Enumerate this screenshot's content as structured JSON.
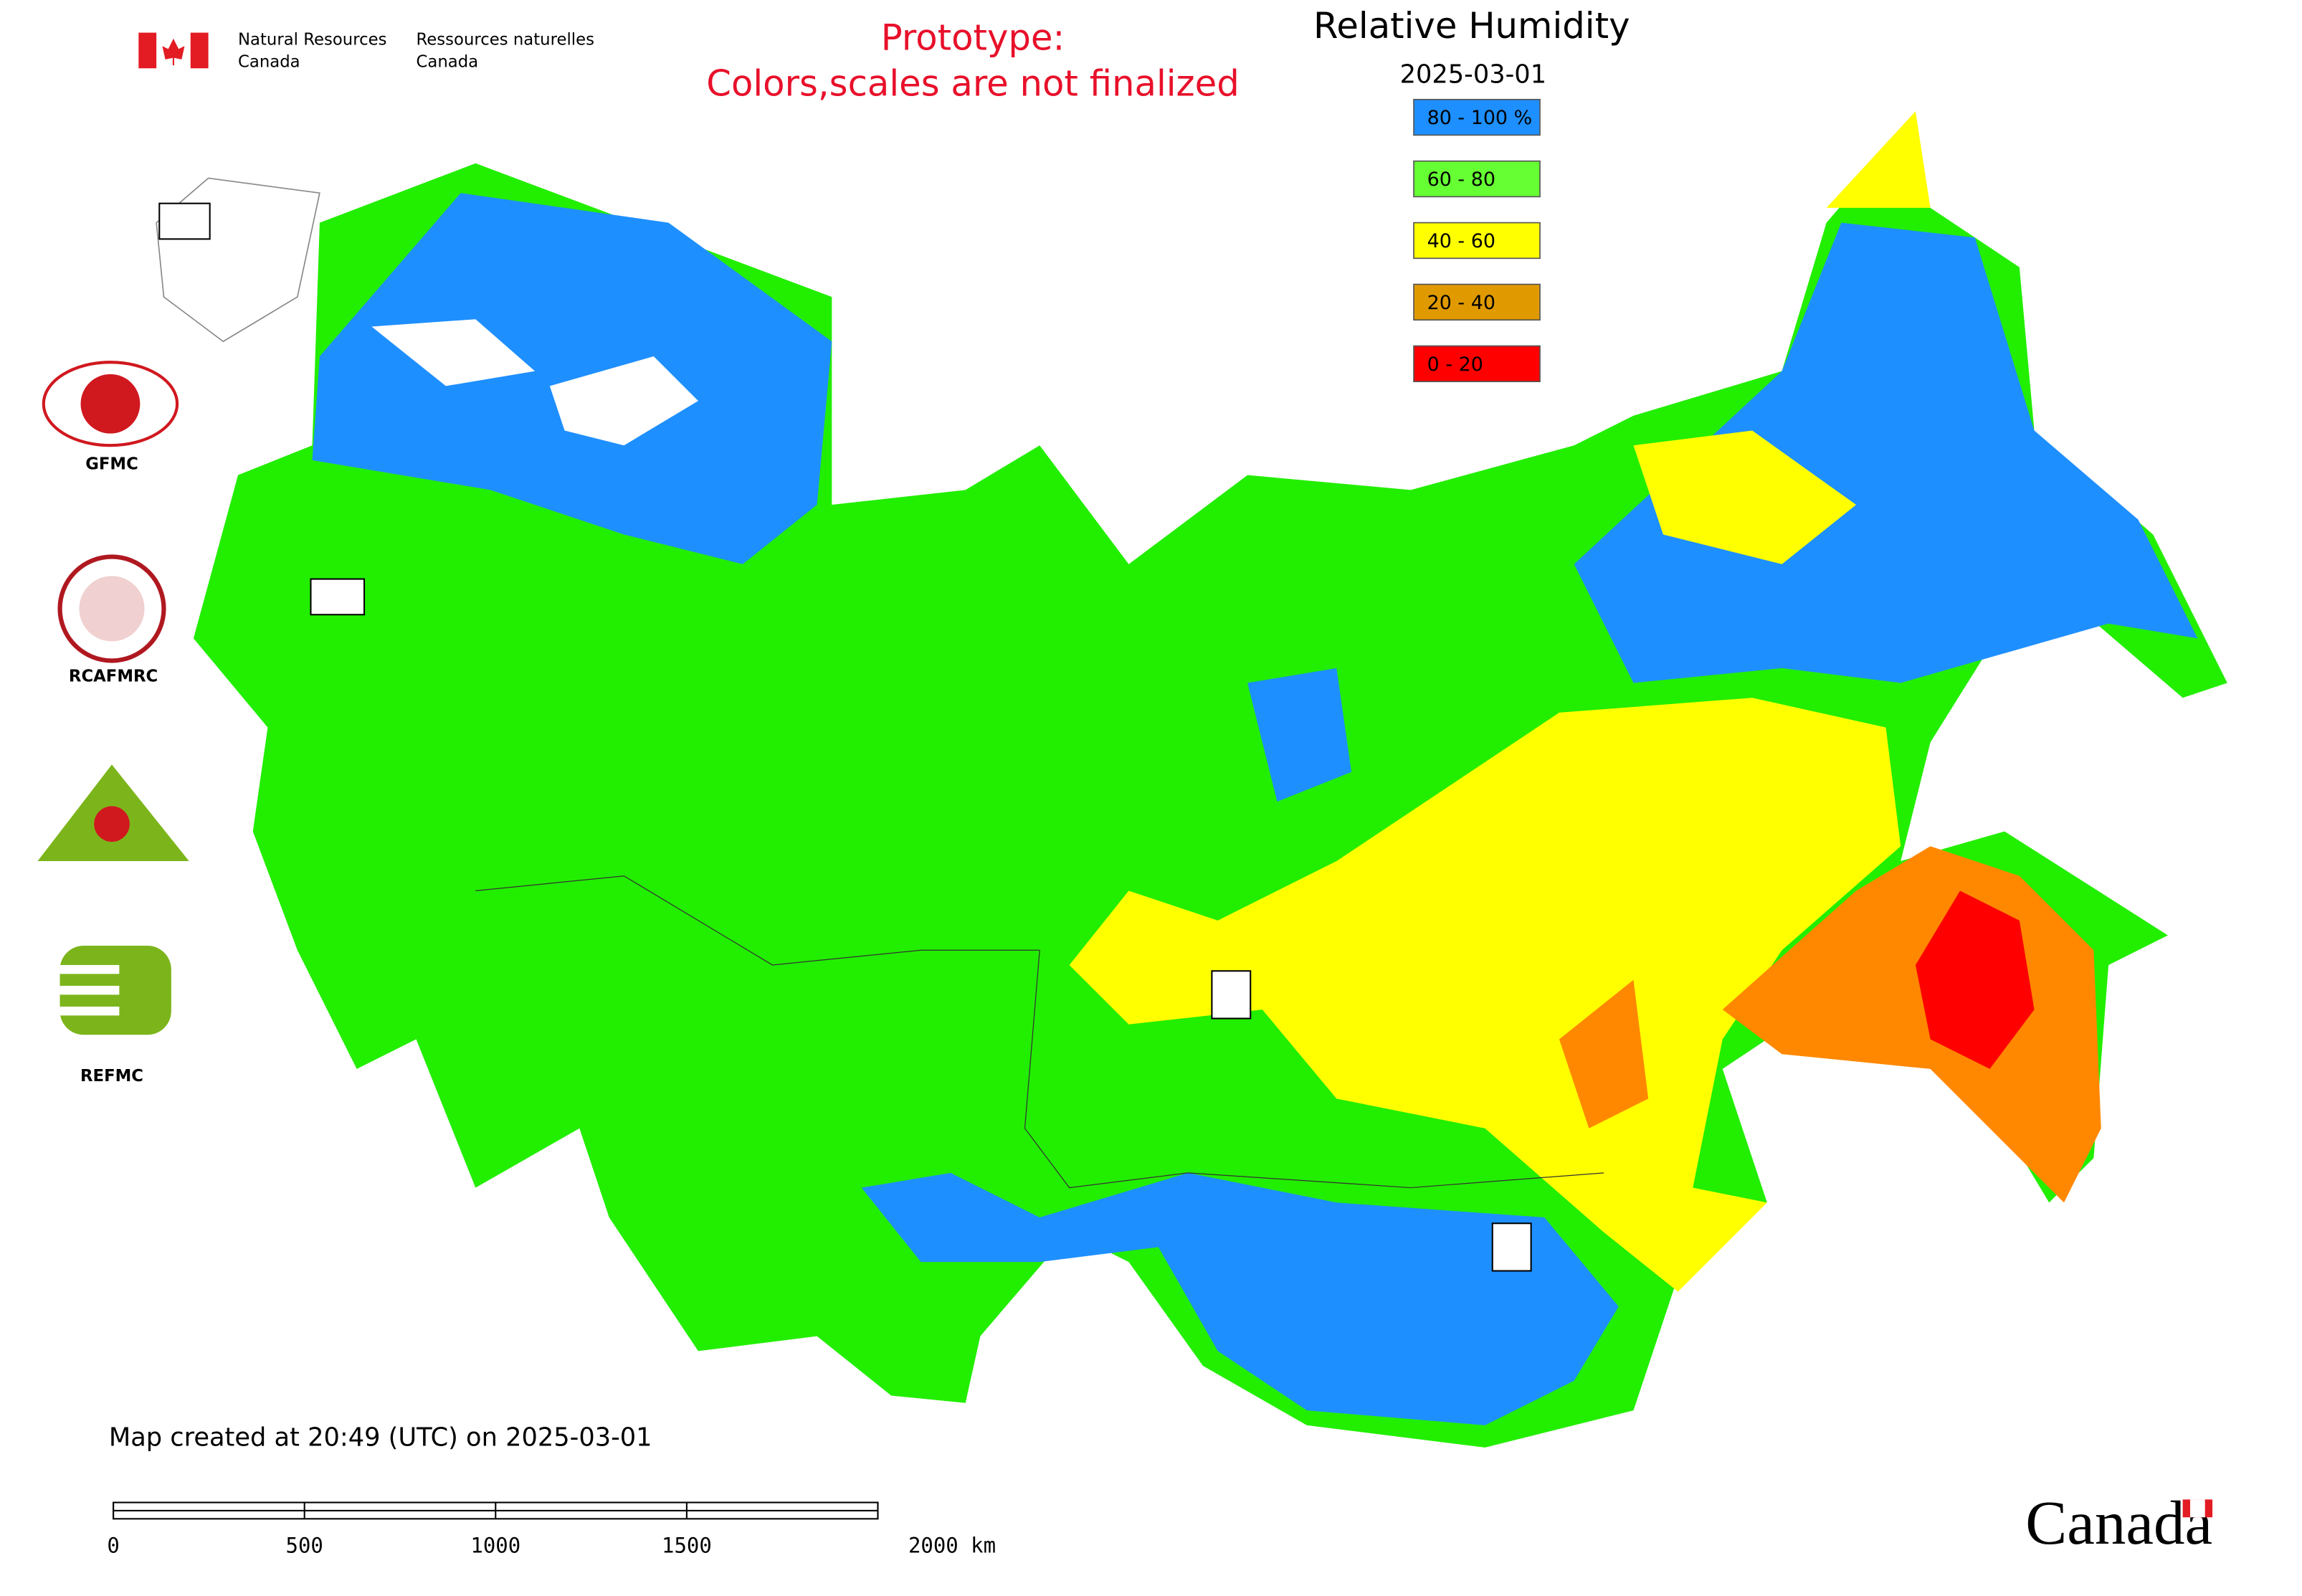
{
  "header": {
    "dept_en": [
      "Natural Resources",
      "Canada"
    ],
    "dept_fr": [
      "Ressources naturelles",
      "Canada"
    ]
  },
  "prototype_note": [
    "Prototype:",
    "Colors,scales are not finalized"
  ],
  "title": "Relative Humidity",
  "date": "2025-03-01",
  "legend": [
    {
      "label": "80 - 100 %",
      "color": "#1e8fff"
    },
    {
      "label": "60 - 80",
      "color": "#66ff33"
    },
    {
      "label": "40 - 60",
      "color": "#ffff00"
    },
    {
      "label": "20 - 40",
      "color": "#e09a00"
    },
    {
      "label": "0 - 20",
      "color": "#ff0000"
    }
  ],
  "logos": [
    "GFMC",
    "RCAFMRC",
    "REFMC"
  ],
  "footer": "Map created at 20:49 (UTC) on 2025-03-01",
  "scale_bar": [
    "0",
    "500",
    "1000",
    "1500",
    "2000 km"
  ],
  "wordmark": "Canada"
}
